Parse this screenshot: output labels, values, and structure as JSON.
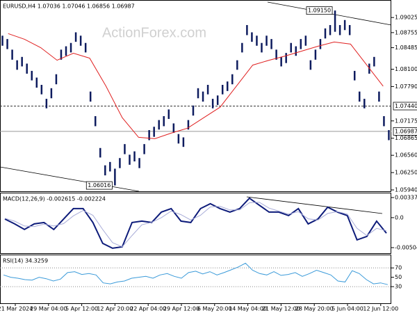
{
  "chart_data": [
    {
      "type": "ohlc",
      "title": "EURUSD,H4  1.07036 1.07046 1.06856 1.06987",
      "watermark": "ActionForex.com",
      "color": "#0d1b5e",
      "high": [
        1.087,
        1.0864,
        1.0845,
        1.0826,
        1.0832,
        1.082,
        1.0807,
        1.0795,
        1.0782,
        1.0757,
        1.0776,
        1.0801,
        1.0845,
        1.0851,
        1.0857,
        1.0876,
        1.087,
        1.0857,
        1.077,
        1.0726,
        1.0669,
        1.0638,
        1.0644,
        1.0632,
        1.0651,
        1.0676,
        1.0657,
        1.0663,
        1.0651,
        1.0676,
        1.0701,
        1.0707,
        1.0719,
        1.0726,
        1.0738,
        1.0713,
        1.0694,
        1.0688,
        1.0719,
        1.0745,
        1.0776,
        1.077,
        1.0782,
        1.0757,
        1.0763,
        1.0782,
        1.0788,
        1.0801,
        1.0826,
        1.0857,
        1.0889,
        1.0876,
        1.087,
        1.0857,
        1.087,
        1.0864,
        1.0845,
        1.0832,
        1.0839,
        1.0857,
        1.0851,
        1.0864,
        1.087,
        1.0826,
        1.0845,
        1.0864,
        1.0883,
        1.0889,
        1.0915,
        1.0889,
        1.0898,
        1.0889,
        1.0807,
        1.077,
        1.0757,
        1.082,
        1.0832,
        1.077,
        1.0726,
        1.0701
      ],
      "low": [
        1.0852,
        1.0846,
        1.0827,
        1.0809,
        1.0815,
        1.0802,
        1.079,
        1.0777,
        1.0765,
        1.074,
        1.0758,
        1.0783,
        1.0827,
        1.0834,
        1.084,
        1.0859,
        1.0852,
        1.084,
        1.0752,
        1.0708,
        1.0652,
        1.062,
        1.0627,
        1.0602,
        1.0633,
        1.0658,
        1.0639,
        1.0645,
        1.0633,
        1.0658,
        1.0683,
        1.0689,
        1.0702,
        1.0708,
        1.0721,
        1.0696,
        1.0677,
        1.0671,
        1.0702,
        1.0727,
        1.0758,
        1.0752,
        1.0765,
        1.074,
        1.0746,
        1.0765,
        1.0771,
        1.0783,
        1.0809,
        1.084,
        1.0871,
        1.0859,
        1.0852,
        1.084,
        1.0852,
        1.0846,
        1.0827,
        1.0815,
        1.0821,
        1.084,
        1.0834,
        1.0846,
        1.0852,
        1.0809,
        1.0827,
        1.0846,
        1.0865,
        1.0871,
        1.0877,
        1.0871,
        1.088,
        1.0871,
        1.079,
        1.0752,
        1.074,
        1.0802,
        1.0815,
        1.0752,
        1.0708,
        1.0683
      ],
      "ma": {
        "color": "#e02020",
        "values": [
          1.08737,
          1.08637,
          1.08486,
          1.0826,
          1.08386,
          1.08298,
          1.07796,
          1.07232,
          1.06881,
          1.06856,
          1.06956,
          1.07044,
          1.07232,
          1.0742,
          1.07796,
          1.08173,
          1.0826,
          1.08336,
          1.08424,
          1.08511,
          1.08587,
          1.08549,
          1.08173,
          1.07796
        ]
      },
      "levels": [
        {
          "value": 1.0744,
          "label": "1.07440",
          "style": "dashed"
        },
        {
          "value": 1.06987,
          "label": "1.06987",
          "style": "solid"
        }
      ],
      "annotations": [
        {
          "value": 1.0915,
          "label": "1.09150"
        },
        {
          "value": 1.0602,
          "label": "1.06016"
        }
      ],
      "ylim": [
        1.05903,
        1.09326
      ],
      "yticks": [
        1.09025,
        1.08755,
        1.08485,
        {
          "value": 1.081,
          "label": "1.08100"
        },
        {
          "value": 1.0779,
          "label": "1.07790"
        },
        1.07175,
        1.06865,
        {
          "value": 1.0656,
          "label": "1.06560"
        },
        {
          "value": 1.0625,
          "label": "1.06250"
        },
        {
          "value": 1.0594,
          "label": "1.05940"
        }
      ]
    },
    {
      "type": "line",
      "title": "MACD(12,26,9) -0.002615 -0.002224",
      "series": [
        {
          "color": "#0d1b7a",
          "width": 2,
          "values": [
            -0.00023,
            -0.00105,
            -0.00199,
            -0.00105,
            -0.00082,
            -0.00199,
            -0.00023,
            0.00152,
            0.00152,
            -0.00082,
            -0.00432,
            -0.00514,
            -0.00491,
            -0.00082,
            -0.00058,
            -0.00082,
            0.00094,
            0.00152,
            -0.00058,
            -0.00082,
            0.00152,
            0.00234,
            0.00152,
            0.00094,
            0.00152,
            0.00327,
            0.0021,
            0.00094,
            0.00094,
            0.00035,
            0.00152,
            -0.00105,
            -0.00023,
            0.00175,
            0.00094,
            0.00035,
            -0.00374,
            -0.00316,
            -0.00058,
            -0.00262
          ]
        },
        {
          "color": "#a8acd8",
          "width": 1,
          "values": [
            -0.0001,
            -0.0006,
            -0.0014,
            -0.0015,
            -0.0011,
            -0.0014,
            -0.001,
            0.0003,
            0.0012,
            0.0004,
            -0.002,
            -0.0042,
            -0.0049,
            -0.003,
            -0.0012,
            -0.0008,
            0.0,
            0.0011,
            0.0005,
            -0.0004,
            0.0004,
            0.0018,
            0.0019,
            0.0013,
            0.0013,
            0.0025,
            0.0026,
            0.0016,
            0.0011,
            0.0006,
            0.001,
            -0.0002,
            -0.0004,
            0.0007,
            0.001,
            0.0006,
            -0.0018,
            -0.003,
            -0.0018,
            -0.0022
          ]
        }
      ],
      "ylim": [
        -0.00609,
        0.00408
      ],
      "yticks": [
        0.003375,
        {
          "value": 0,
          "label": "0.0"
        },
        -0.00504
      ]
    },
    {
      "type": "line",
      "title": "RSI(14) 34.3259",
      "series": [
        {
          "color": "#3a9ad9",
          "width": 1,
          "values": [
            55,
            50,
            48,
            45,
            44,
            50,
            47,
            42,
            46,
            60,
            62,
            56,
            58,
            55,
            38,
            36,
            40,
            42,
            48,
            50,
            52,
            48,
            55,
            58,
            52,
            48,
            60,
            63,
            57,
            62,
            55,
            60,
            66,
            72,
            80,
            65,
            58,
            55,
            62,
            54,
            56,
            60,
            52,
            58,
            65,
            60,
            55,
            42,
            40,
            64,
            58,
            45,
            36,
            38,
            34.3259
          ]
        }
      ],
      "levels": [
        70,
        30
      ],
      "ylim": [
        -7,
        97
      ],
      "yticks": [
        70,
        50,
        30
      ]
    }
  ],
  "time_axis": [
    "21 Mar 2024",
    "29 Mar 04:00",
    "5 Apr 12:00",
    "12 Apr 20:00",
    "22 Apr 04:00",
    "29 Apr 12:00",
    "6 May 20:00",
    "14 May 04:00",
    "21 May 12:00",
    "28 May 20:00",
    "5 Jun 04:00",
    "12 Jun 12:00"
  ]
}
